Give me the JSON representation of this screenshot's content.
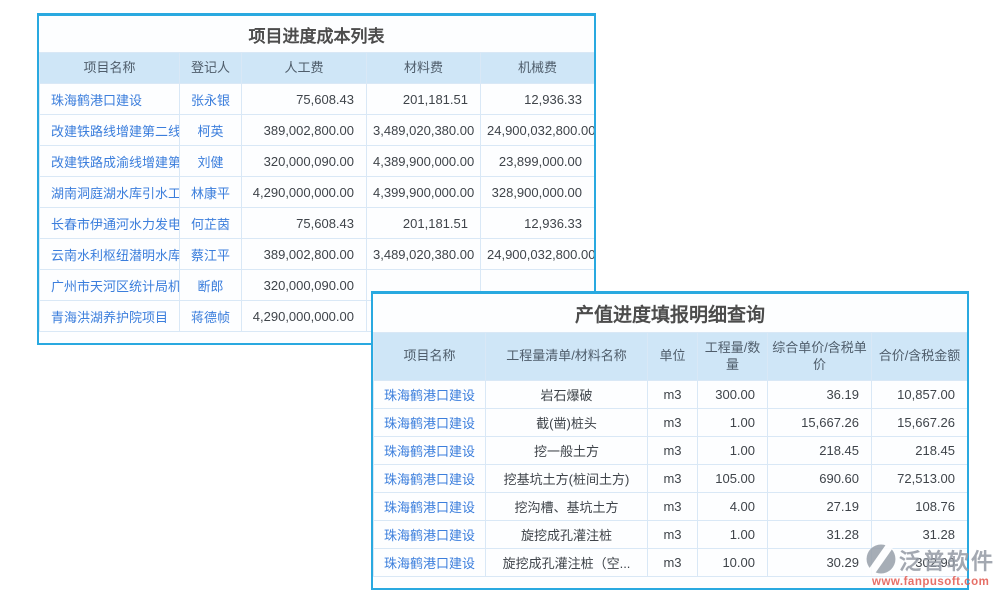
{
  "theme": {
    "accent": "#29a9e0",
    "header_bg": "#cfe6f7",
    "grid_line": "#d9e8f6",
    "link": "#3b7edc",
    "text_dark": "#3f444a",
    "header_text": "#4f5d6b",
    "title_text": "#4c4c4c",
    "watermark_gray": "#949aa4",
    "watermark_red": "#e2574d",
    "panel_bg": "#fdfeff"
  },
  "cost_table": {
    "title": "项目进度成本列表",
    "columns": [
      "项目名称",
      "登记人",
      "人工费",
      "材料费",
      "机械费"
    ],
    "rows": [
      [
        "珠海鹤港口建设",
        "张永银",
        "75,608.43",
        "201,181.51",
        "12,936.33"
      ],
      [
        "改建铁路线增建第二线...",
        "柯英",
        "389,002,800.00",
        "3,489,020,380.00",
        "24,900,032,800.00"
      ],
      [
        "改建铁路成渝线增建第...",
        "刘健",
        "320,000,090.00",
        "4,389,900,000.00",
        "23,899,000.00"
      ],
      [
        "湖南洞庭湖水库引水工...",
        "林康平",
        "4,290,000,000.00",
        "4,399,900,000.00",
        "328,900,000.00"
      ],
      [
        "长春市伊通河水力发电...",
        "何芷茵",
        "75,608.43",
        "201,181.51",
        "12,936.33"
      ],
      [
        "云南水利枢纽潜明水库...",
        "蔡江平",
        "389,002,800.00",
        "3,489,020,380.00",
        "24,900,032,800.00"
      ],
      [
        "广州市天河区统计局机...",
        "断郎",
        "320,000,090.00",
        "",
        ""
      ],
      [
        "青海洪湖养护院项目",
        "蒋德帧",
        "4,290,000,000.00",
        "",
        ""
      ]
    ]
  },
  "value_table": {
    "title": "产值进度填报明细查询",
    "columns": [
      "项目名称",
      "工程量清单/材料名称",
      "单位",
      "工程量/数量",
      "综合单价/含税单价",
      "合价/含税金额"
    ],
    "rows": [
      [
        "珠海鹤港口建设",
        "岩石爆破",
        "m3",
        "300.00",
        "36.19",
        "10,857.00"
      ],
      [
        "珠海鹤港口建设",
        "截(凿)桩头",
        "m3",
        "1.00",
        "15,667.26",
        "15,667.26"
      ],
      [
        "珠海鹤港口建设",
        "挖一般土方",
        "m3",
        "1.00",
        "218.45",
        "218.45"
      ],
      [
        "珠海鹤港口建设",
        "挖基坑土方(桩间土方)",
        "m3",
        "105.00",
        "690.60",
        "72,513.00"
      ],
      [
        "珠海鹤港口建设",
        "挖沟槽、基坑土方",
        "m3",
        "4.00",
        "27.19",
        "108.76"
      ],
      [
        "珠海鹤港口建设",
        "旋挖成孔灌注桩",
        "m3",
        "1.00",
        "31.28",
        "31.28"
      ],
      [
        "珠海鹤港口建设",
        "旋挖成孔灌注桩（空...",
        "m3",
        "10.00",
        "30.29",
        "302.90"
      ]
    ]
  },
  "watermark": {
    "brand": "泛普软件",
    "url": "www.fanpusoft.com"
  }
}
